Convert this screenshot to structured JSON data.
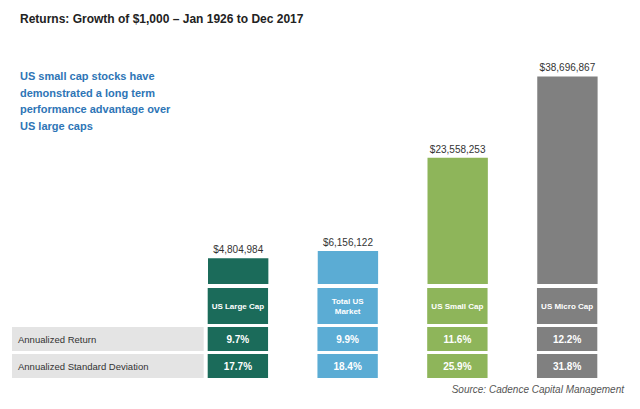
{
  "chart_data": {
    "type": "bar",
    "title": "Returns: Growth of $1,000 – Jan 1926 to Dec 2017",
    "categories": [
      "US Large Cap",
      "Total US\nMarket",
      "US Small Cap",
      "US Micro Cap"
    ],
    "values": [
      4804984,
      6156122,
      23558253,
      38696867
    ],
    "value_labels": [
      "$4,804,984",
      "$6,156,122",
      "$23,558,253",
      "$38,696,867"
    ],
    "data_labels": true,
    "colors": [
      "#1B6B5A",
      "#5BACD4",
      "#8EB55A",
      "#808080"
    ],
    "ylim": [
      0,
      44000000
    ],
    "tick_labels": false,
    "grid": false,
    "annotation": {
      "text": "US small cap stocks have\ndemonstrated a long term\nperformance advantage over\nUS large caps",
      "color": "#2E75B6"
    },
    "source": "Source: Cadence Capital Management",
    "table": [
      {
        "label": "Annualized Return",
        "values": [
          9.7,
          9.9,
          11.6,
          12.2
        ],
        "value_labels": [
          "9.7%",
          "9.9%",
          "11.6%",
          "12.2%"
        ]
      },
      {
        "label": "Annualized Standard Deviation",
        "values": [
          17.7,
          18.4,
          25.9,
          31.8
        ],
        "value_labels": [
          "17.7%",
          "18.4%",
          "25.9%",
          "31.8%"
        ]
      }
    ]
  }
}
